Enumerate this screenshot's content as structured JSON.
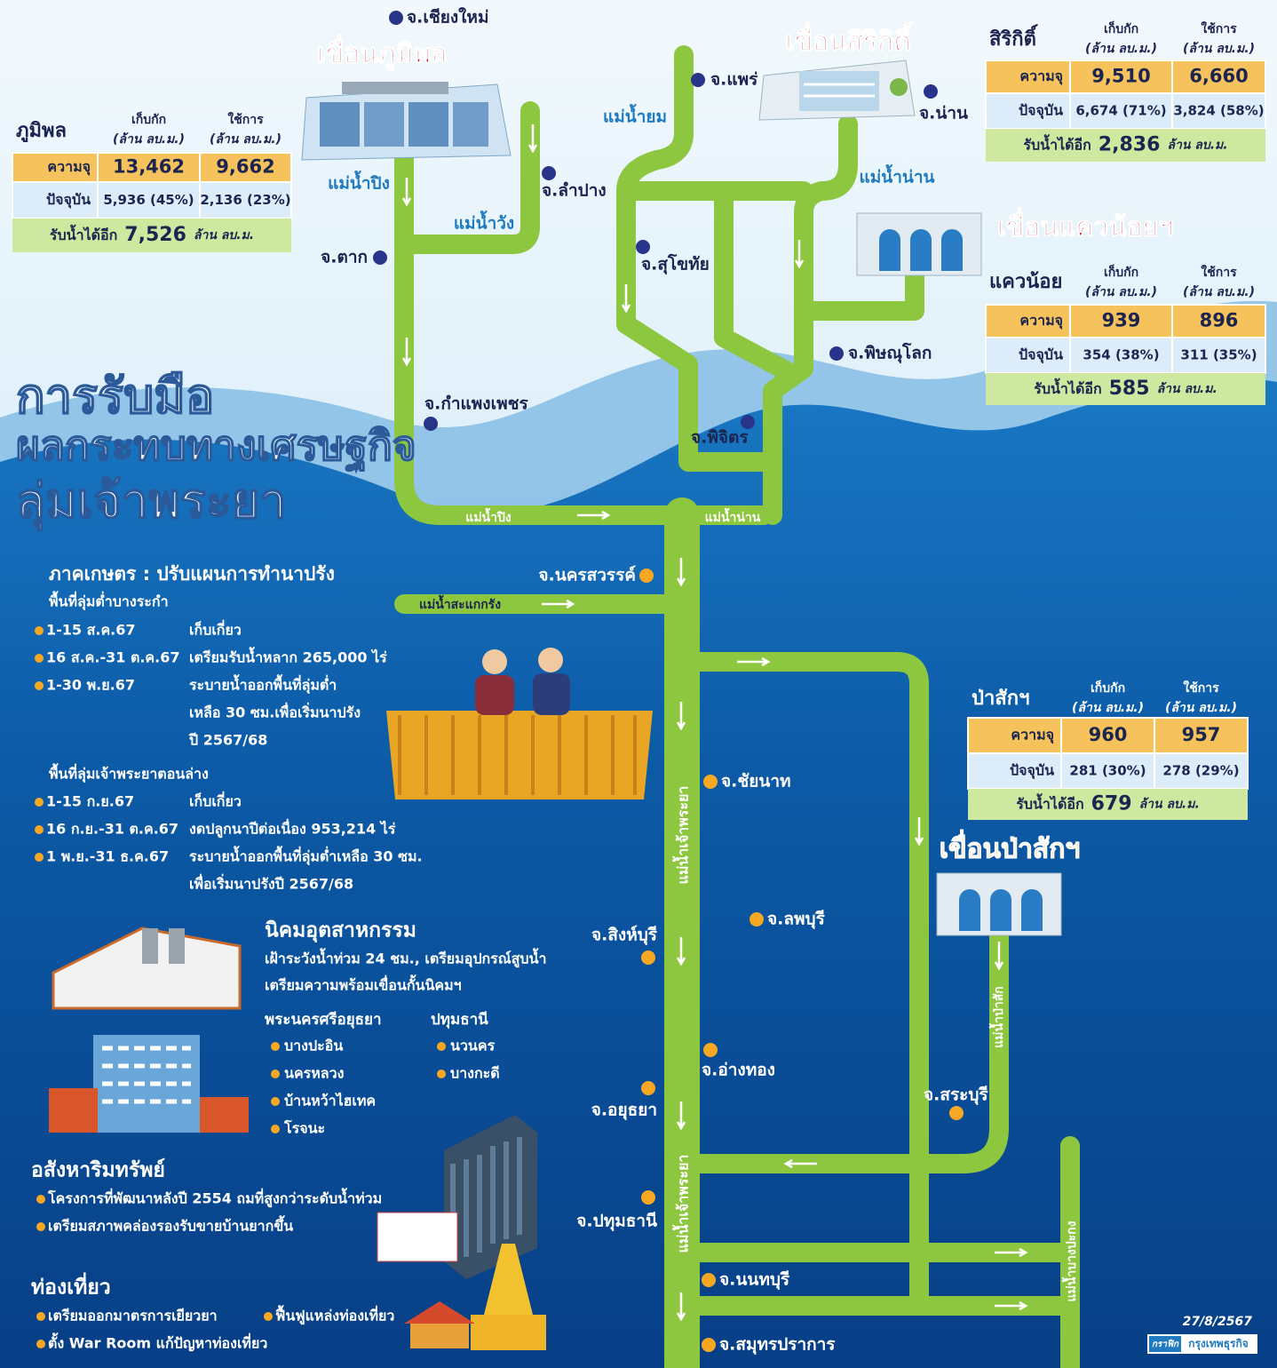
{
  "title": [
    "การรับมือ",
    "ผลกระทบทางเศรษฐกิจ",
    "ลุ่มเจ้าพระยา"
  ],
  "dams": [
    {
      "title": "เขื่อนภูมิพล",
      "name": "ภูมิพล",
      "headers": [
        [
          "เก็บกัก",
          "(ล้าน ลบ.ม.)"
        ],
        [
          "ใช้การ",
          "(ล้าน ลบ.ม.)"
        ]
      ],
      "rows": [
        [
          "ความจุ",
          "13,462",
          "9,662"
        ],
        [
          "ปัจจุบัน",
          "5,936 (45%)",
          "2,136 (23%)"
        ]
      ],
      "available": [
        "รับน้ำได้อีก",
        "7,526",
        "ล้าน ลบ.ม."
      ]
    },
    {
      "title": "เขื่อนสิริกิติ์",
      "name": "สิริกิติ์",
      "headers": [
        [
          "เก็บกัก",
          "(ล้าน ลบ.ม.)"
        ],
        [
          "ใช้การ",
          "(ล้าน ลบ.ม.)"
        ]
      ],
      "rows": [
        [
          "ความจุ",
          "9,510",
          "6,660"
        ],
        [
          "ปัจจุบัน",
          "6,674 (71%)",
          "3,824 (58%)"
        ]
      ],
      "available": [
        "รับน้ำได้อีก",
        "2,836",
        "ล้าน ลบ.ม."
      ]
    },
    {
      "title": "เขื่อนแควน้อยฯ",
      "name": "แควน้อย",
      "headers": [
        [
          "เก็บกัก",
          "(ล้าน ลบ.ม.)"
        ],
        [
          "ใช้การ",
          "(ล้าน ลบ.ม.)"
        ]
      ],
      "rows": [
        [
          "ความจุ",
          "939",
          "896"
        ],
        [
          "ปัจจุบัน",
          "354 (38%)",
          "311 (35%)"
        ]
      ],
      "available": [
        "รับน้ำได้อีก",
        "585",
        "ล้าน ลบ.ม."
      ]
    },
    {
      "title": "เขื่อนป่าสักฯ",
      "name": "ป่าสักฯ",
      "headers": [
        [
          "เก็บกัก",
          "(ล้าน ลบ.ม.)"
        ],
        [
          "ใช้การ",
          "(ล้าน ลบ.ม.)"
        ]
      ],
      "rows": [
        [
          "ความจุ",
          "960",
          "957"
        ],
        [
          "ปัจจุบัน",
          "281 (30%)",
          "278 (29%)"
        ]
      ],
      "available": [
        "รับน้ำได้อีก",
        "679",
        "ล้าน ลบ.ม."
      ]
    }
  ],
  "provinces": [
    "จ.เชียงใหม่",
    "จ.แพร่",
    "จ.น่าน",
    "จ.ลำปาง",
    "จ.ตาก",
    "จ.สุโขทัย",
    "จ.พิษณุโลก",
    "จ.กำแพงเพชร",
    "จ.พิจิตร",
    "จ.นครสวรรค์",
    "จ.ชัยนาท",
    "จ.ลพบุรี",
    "จ.สิงห์บุรี",
    "จ.อ่างทอง",
    "จ.สระบุรี",
    "จ.อยุธยา",
    "จ.ปทุมธานี",
    "จ.นนทบุรี",
    "จ.สมุทรปราการ"
  ],
  "rivers": [
    "แม่น้ำปิง",
    "แม่น้ำวัง",
    "แม่น้ำยม",
    "แม่น้ำน่าน",
    "แม่น้ำปิง",
    "แม่น้ำน่าน",
    "แม่น้ำสะแกกรัง",
    "แม่น้ำเจ้าพระยา",
    "แม่น้ำเจ้าพระยา",
    "แม่น้ำป่าสัก",
    "แม่น้ำบางปะกง"
  ],
  "agriculture": {
    "title": "ภาคเกษตร : ปรับแผนการทำนาปรัง",
    "groups": [
      {
        "heading": "พื้นที่ลุ่มต่ำบางระกำ",
        "items": [
          {
            "date": "1-15 ส.ค.67",
            "lines": [
              "เก็บเกี่ยว"
            ]
          },
          {
            "date": "16 ส.ค.-31 ต.ค.67",
            "lines": [
              "เตรียมรับน้ำหลาก 265,000 ไร่"
            ]
          },
          {
            "date": "1-30 พ.ย.67",
            "lines": [
              "ระบายน้ำออกพื้นที่ลุ่มต่ำ",
              "เหลือ 30 ซม.เพื่อเริ่มนาปรัง",
              "ปี 2567/68"
            ]
          }
        ]
      },
      {
        "heading": "พื้นที่ลุ่มเจ้าพระยาตอนล่าง",
        "items": [
          {
            "date": "1-15 ก.ย.67",
            "lines": [
              "เก็บเกี่ยว"
            ]
          },
          {
            "date": "16 ก.ย.-31 ต.ค.67",
            "lines": [
              "งดปลูกนาปีต่อเนื่อง 953,214 ไร่"
            ]
          },
          {
            "date": "1 พ.ย.-31 ธ.ค.67",
            "lines": [
              "ระบายน้ำออกพื้นที่ลุ่มต่ำเหลือ 30 ซม.",
              "เพื่อเริ่มนาปรังปี 2567/68"
            ]
          }
        ]
      }
    ]
  },
  "industry": {
    "title": "นิคมอุตสาหกรรม",
    "lines": [
      "เฝ้าระวังน้ำท่วม 24 ชม., เตรียมอุปกรณ์สูบน้ำ",
      "เตรียมความพร้อมเขื่อนกั้นนิคมฯ"
    ],
    "groups": [
      {
        "name": "พระนครศรีอยุธยา",
        "items": [
          "บางปะอิน",
          "นครหลวง",
          "บ้านหว้าไฮเทค",
          "โรจนะ"
        ]
      },
      {
        "name": "ปทุมธานี",
        "items": [
          "นวนคร",
          "บางกะดี"
        ]
      }
    ]
  },
  "real_estate": {
    "title": "อสังหาริมทรัพย์",
    "items": [
      "โครงการที่พัฒนาหลังปี 2554 ถมที่สูงกว่าระดับน้ำท่วม",
      "เตรียมสภาพคล่องรองรับขายบ้านยากขึ้น"
    ]
  },
  "tourism": {
    "title": "ท่องเที่ยว",
    "items": [
      "เตรียมออกมาตรการเยียวยา",
      "ฟื้นฟูแหล่งท่องเที่ยว",
      "ตั้ง War Room แก้ปัญหาท่องเที่ยว"
    ]
  },
  "footer": {
    "date": "27/8/2567",
    "credit": [
      "กราฟิก",
      "กรุงเทพธุรกิจ"
    ]
  }
}
